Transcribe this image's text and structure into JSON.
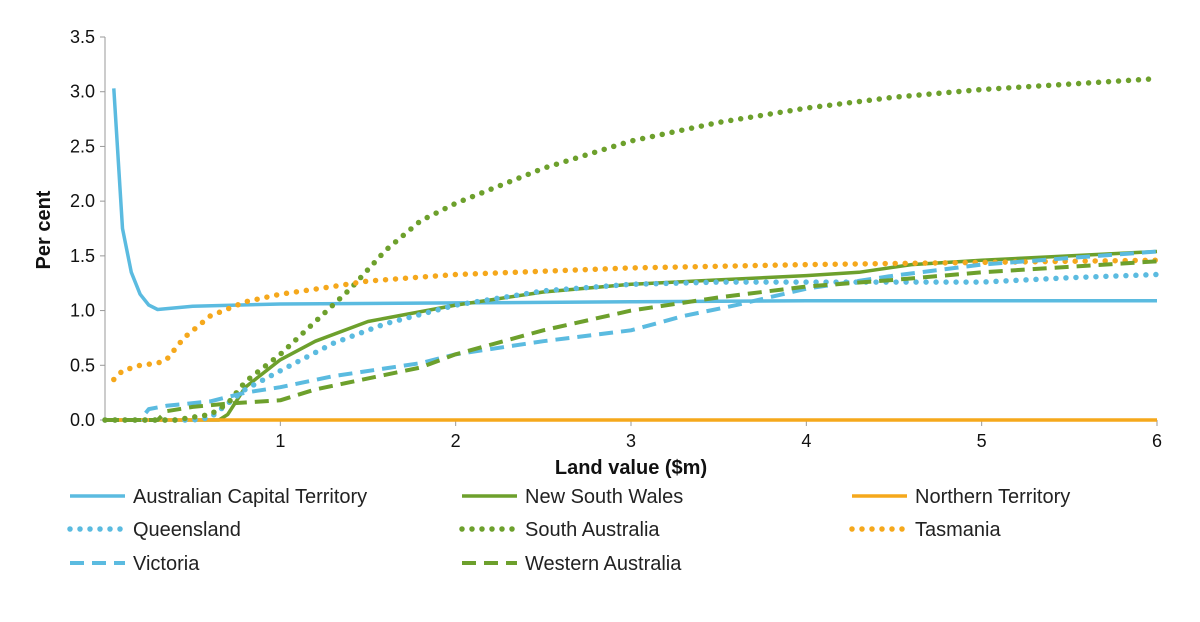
{
  "chart_data": {
    "type": "line",
    "title": "",
    "xlabel": "Land value ($m)",
    "ylabel": "Per cent",
    "xlim": [
      0,
      6
    ],
    "ylim": [
      0,
      3.5
    ],
    "xticks": [
      "1",
      "2",
      "3",
      "4",
      "5",
      "6"
    ],
    "yticks": [
      "0.0",
      "0.5",
      "1.0",
      "1.5",
      "2.0",
      "2.5",
      "3.0",
      "3.5"
    ],
    "grid": false,
    "legend_position": "bottom",
    "series": [
      {
        "name": "Australian Capital Territory",
        "color": "#5bbbe0",
        "style": "solid",
        "points": [
          [
            0.05,
            3.03
          ],
          [
            0.1,
            1.75
          ],
          [
            0.15,
            1.35
          ],
          [
            0.2,
            1.15
          ],
          [
            0.25,
            1.05
          ],
          [
            0.3,
            1.01
          ],
          [
            0.5,
            1.04
          ],
          [
            1,
            1.06
          ],
          [
            2,
            1.07
          ],
          [
            3,
            1.08
          ],
          [
            4,
            1.09
          ],
          [
            6,
            1.09
          ]
        ]
      },
      {
        "name": "New South Wales",
        "color": "#6da02c",
        "style": "solid",
        "points": [
          [
            0,
            0
          ],
          [
            0.65,
            0
          ],
          [
            0.7,
            0.05
          ],
          [
            0.8,
            0.3
          ],
          [
            1,
            0.55
          ],
          [
            1.2,
            0.72
          ],
          [
            1.5,
            0.9
          ],
          [
            2,
            1.05
          ],
          [
            2.5,
            1.17
          ],
          [
            3,
            1.24
          ],
          [
            3.5,
            1.28
          ],
          [
            4,
            1.32
          ],
          [
            4.3,
            1.35
          ],
          [
            4.6,
            1.42
          ],
          [
            5,
            1.46
          ],
          [
            5.5,
            1.5
          ],
          [
            6,
            1.54
          ]
        ]
      },
      {
        "name": "Northern Territory",
        "color": "#f5a81c",
        "style": "solid",
        "points": [
          [
            0,
            0
          ],
          [
            6,
            0
          ]
        ]
      },
      {
        "name": "Queensland",
        "color": "#5bbbe0",
        "style": "dotted",
        "points": [
          [
            0,
            0
          ],
          [
            0.5,
            0
          ],
          [
            0.6,
            0.02
          ],
          [
            0.7,
            0.15
          ],
          [
            0.8,
            0.28
          ],
          [
            1,
            0.45
          ],
          [
            1.3,
            0.7
          ],
          [
            1.6,
            0.88
          ],
          [
            2,
            1.05
          ],
          [
            2.5,
            1.18
          ],
          [
            3,
            1.24
          ],
          [
            3.5,
            1.26
          ],
          [
            4,
            1.26
          ],
          [
            5,
            1.26
          ],
          [
            5.5,
            1.3
          ],
          [
            6,
            1.33
          ]
        ]
      },
      {
        "name": "South Australia",
        "color": "#6da02c",
        "style": "dotted",
        "points": [
          [
            0,
            0
          ],
          [
            0.4,
            0
          ],
          [
            0.6,
            0.05
          ],
          [
            0.7,
            0.15
          ],
          [
            0.8,
            0.35
          ],
          [
            1,
            0.6
          ],
          [
            1.2,
            0.9
          ],
          [
            1.4,
            1.2
          ],
          [
            1.6,
            1.55
          ],
          [
            1.8,
            1.82
          ],
          [
            2,
            1.98
          ],
          [
            2.5,
            2.3
          ],
          [
            3,
            2.55
          ],
          [
            3.5,
            2.72
          ],
          [
            4,
            2.85
          ],
          [
            4.5,
            2.95
          ],
          [
            5,
            3.02
          ],
          [
            5.5,
            3.07
          ],
          [
            6,
            3.12
          ]
        ]
      },
      {
        "name": "Tasmania",
        "color": "#f5a81c",
        "style": "dotted",
        "points": [
          [
            0.05,
            0.37
          ],
          [
            0.1,
            0.45
          ],
          [
            0.2,
            0.5
          ],
          [
            0.3,
            0.52
          ],
          [
            0.35,
            0.55
          ],
          [
            0.45,
            0.75
          ],
          [
            0.6,
            0.95
          ],
          [
            0.8,
            1.08
          ],
          [
            1,
            1.15
          ],
          [
            1.3,
            1.22
          ],
          [
            1.5,
            1.27
          ],
          [
            2,
            1.33
          ],
          [
            3,
            1.39
          ],
          [
            4,
            1.42
          ],
          [
            5,
            1.44
          ],
          [
            6,
            1.46
          ]
        ]
      },
      {
        "name": "Victoria",
        "color": "#5bbbe0",
        "style": "dashed",
        "points": [
          [
            0,
            0
          ],
          [
            0.2,
            0
          ],
          [
            0.25,
            0.1
          ],
          [
            0.35,
            0.13
          ],
          [
            0.6,
            0.17
          ],
          [
            0.8,
            0.25
          ],
          [
            1,
            0.3
          ],
          [
            1.3,
            0.4
          ],
          [
            1.8,
            0.52
          ],
          [
            2,
            0.6
          ],
          [
            2.5,
            0.72
          ],
          [
            3,
            0.82
          ],
          [
            3.3,
            0.95
          ],
          [
            3.6,
            1.05
          ],
          [
            4,
            1.2
          ],
          [
            4.5,
            1.32
          ],
          [
            5,
            1.42
          ],
          [
            6,
            1.54
          ]
        ]
      },
      {
        "name": "Western Australia",
        "color": "#6da02c",
        "style": "dashed",
        "points": [
          [
            0,
            0
          ],
          [
            0.3,
            0
          ],
          [
            0.35,
            0.08
          ],
          [
            0.5,
            0.12
          ],
          [
            0.7,
            0.15
          ],
          [
            1,
            0.18
          ],
          [
            1.2,
            0.28
          ],
          [
            1.8,
            0.48
          ],
          [
            2,
            0.6
          ],
          [
            2.5,
            0.82
          ],
          [
            3,
            1.0
          ],
          [
            3.5,
            1.12
          ],
          [
            4,
            1.22
          ],
          [
            4.5,
            1.28
          ],
          [
            5,
            1.35
          ],
          [
            6,
            1.45
          ]
        ]
      }
    ]
  }
}
